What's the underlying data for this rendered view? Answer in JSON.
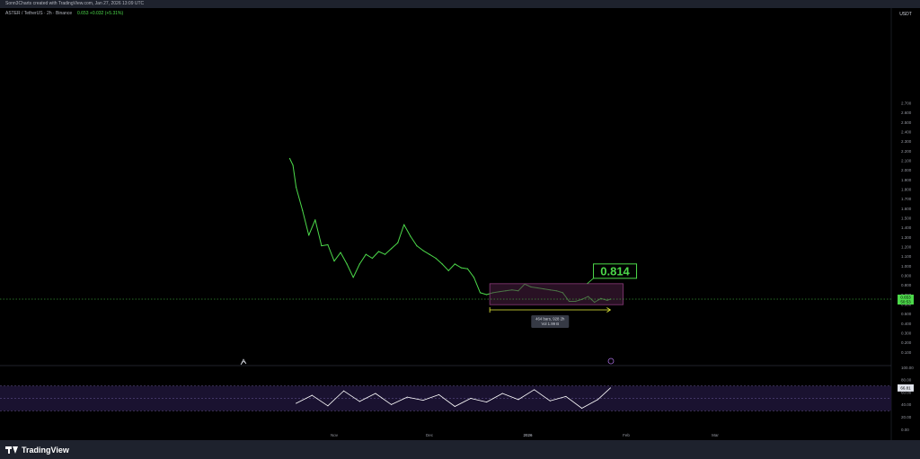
{
  "header": {
    "credit": "Sonn3Charts created with TradingView.com, Jan 27, 2026 13:09 UTC",
    "symbol_line": "ASTER / TetherUS · 2h · Binance",
    "change_text": "0.653 +0.032 (+5.31%)"
  },
  "footer": {
    "brand": "TradingView"
  },
  "colors": {
    "price": "#4cd94a",
    "range_fill": "#4a1f42",
    "range_border": "#8a3a7a",
    "rsi": "#ffffff",
    "measure": "#e8ef3a"
  },
  "chart_data": [
    {
      "type": "line",
      "series": [
        {
          "x": [
            "Oct 18",
            "Oct 19",
            "Oct 20",
            "Oct 22",
            "Oct 24",
            "Oct 26",
            "Oct 28",
            "Oct 30",
            "Nov 1",
            "Nov 3",
            "Nov 5",
            "Nov 7",
            "Nov 9",
            "Nov 11",
            "Nov 13",
            "Nov 15",
            "Nov 17",
            "Nov 19",
            "Nov 21",
            "Nov 23",
            "Nov 25",
            "Nov 27",
            "Nov 29",
            "Dec 1",
            "Dec 3",
            "Dec 5",
            "Dec 7",
            "Dec 9",
            "Dec 11",
            "Dec 13",
            "Dec 15",
            "Dec 17",
            "Dec 19",
            "Dec 21",
            "Dec 23",
            "Dec 25",
            "Dec 27",
            "Dec 29",
            "Dec 31",
            "Jan 2",
            "Jan 4",
            "Jan 6",
            "Jan 8",
            "Jan 10",
            "Jan 12",
            "Jan 14",
            "Jan 16",
            "Jan 18",
            "Jan 20",
            "Jan 22",
            "Jan 24",
            "Jan 26",
            "Jan 27"
          ],
          "values": [
            2.12,
            2.05,
            1.82,
            1.58,
            1.32,
            1.48,
            1.21,
            1.22,
            1.05,
            1.14,
            1.02,
            0.88,
            1.02,
            1.12,
            1.08,
            1.15,
            1.12,
            1.18,
            1.24,
            1.43,
            1.31,
            1.21,
            1.16,
            1.12,
            1.08,
            1.02,
            0.95,
            1.02,
            0.98,
            0.97,
            0.88,
            0.72,
            0.7,
            0.72,
            0.73,
            0.74,
            0.75,
            0.74,
            0.81,
            0.78,
            0.77,
            0.76,
            0.75,
            0.74,
            0.72,
            0.63,
            0.63,
            0.65,
            0.68,
            0.62,
            0.66,
            0.64,
            0.653
          ]
        }
      ],
      "ylim": [
        0.0,
        2.75
      ],
      "y_ticks": [
        "2.700",
        "2.600",
        "2.500",
        "2.400",
        "2.300",
        "2.200",
        "2.100",
        "2.000",
        "1.900",
        "1.800",
        "1.700",
        "1.600",
        "1.500",
        "1.400",
        "1.300",
        "1.200",
        "1.100",
        "1.000",
        "0.900",
        "0.800",
        "0.700",
        "0.600",
        "0.500",
        "0.400",
        "0.300",
        "0.200",
        "0.100"
      ],
      "x_ticks": [
        "Nov",
        "Dec",
        "2026",
        "Feb",
        "Mar"
      ],
      "unit": "USDT",
      "current_price_label": "0.653",
      "countdown_label": "50:53",
      "annotations": {
        "range_box": {
          "from": "Dec 20",
          "to": "Jan 31",
          "low": 0.595,
          "high": 0.814
        },
        "callout": "0.814",
        "measure": {
          "from": "Dec 20",
          "to": "Jan 27",
          "label_line1": "464 bars, 928 2h",
          "label_line2": "Vol 1.99 B"
        }
      }
    },
    {
      "type": "line",
      "series": [
        {
          "name": "RSI",
          "x": [
            "Oct 20",
            "Oct 25",
            "Oct 30",
            "Nov 4",
            "Nov 9",
            "Nov 14",
            "Nov 19",
            "Nov 24",
            "Nov 29",
            "Dec 4",
            "Dec 9",
            "Dec 14",
            "Dec 19",
            "Dec 24",
            "Dec 29",
            "Jan 3",
            "Jan 8",
            "Jan 13",
            "Jan 18",
            "Jan 23",
            "Jan 27"
          ],
          "values": [
            42,
            55,
            38,
            62,
            45,
            58,
            40,
            52,
            47,
            56,
            37,
            50,
            44,
            58,
            48,
            64,
            46,
            53,
            34,
            48,
            66.81
          ]
        }
      ],
      "ylim": [
        0,
        100
      ],
      "y_ticks": [
        "100.00",
        "80.00",
        "60.00",
        "40.00",
        "20.00",
        "0.00"
      ],
      "current_value_label": "66.81",
      "band": [
        30,
        70
      ]
    }
  ]
}
